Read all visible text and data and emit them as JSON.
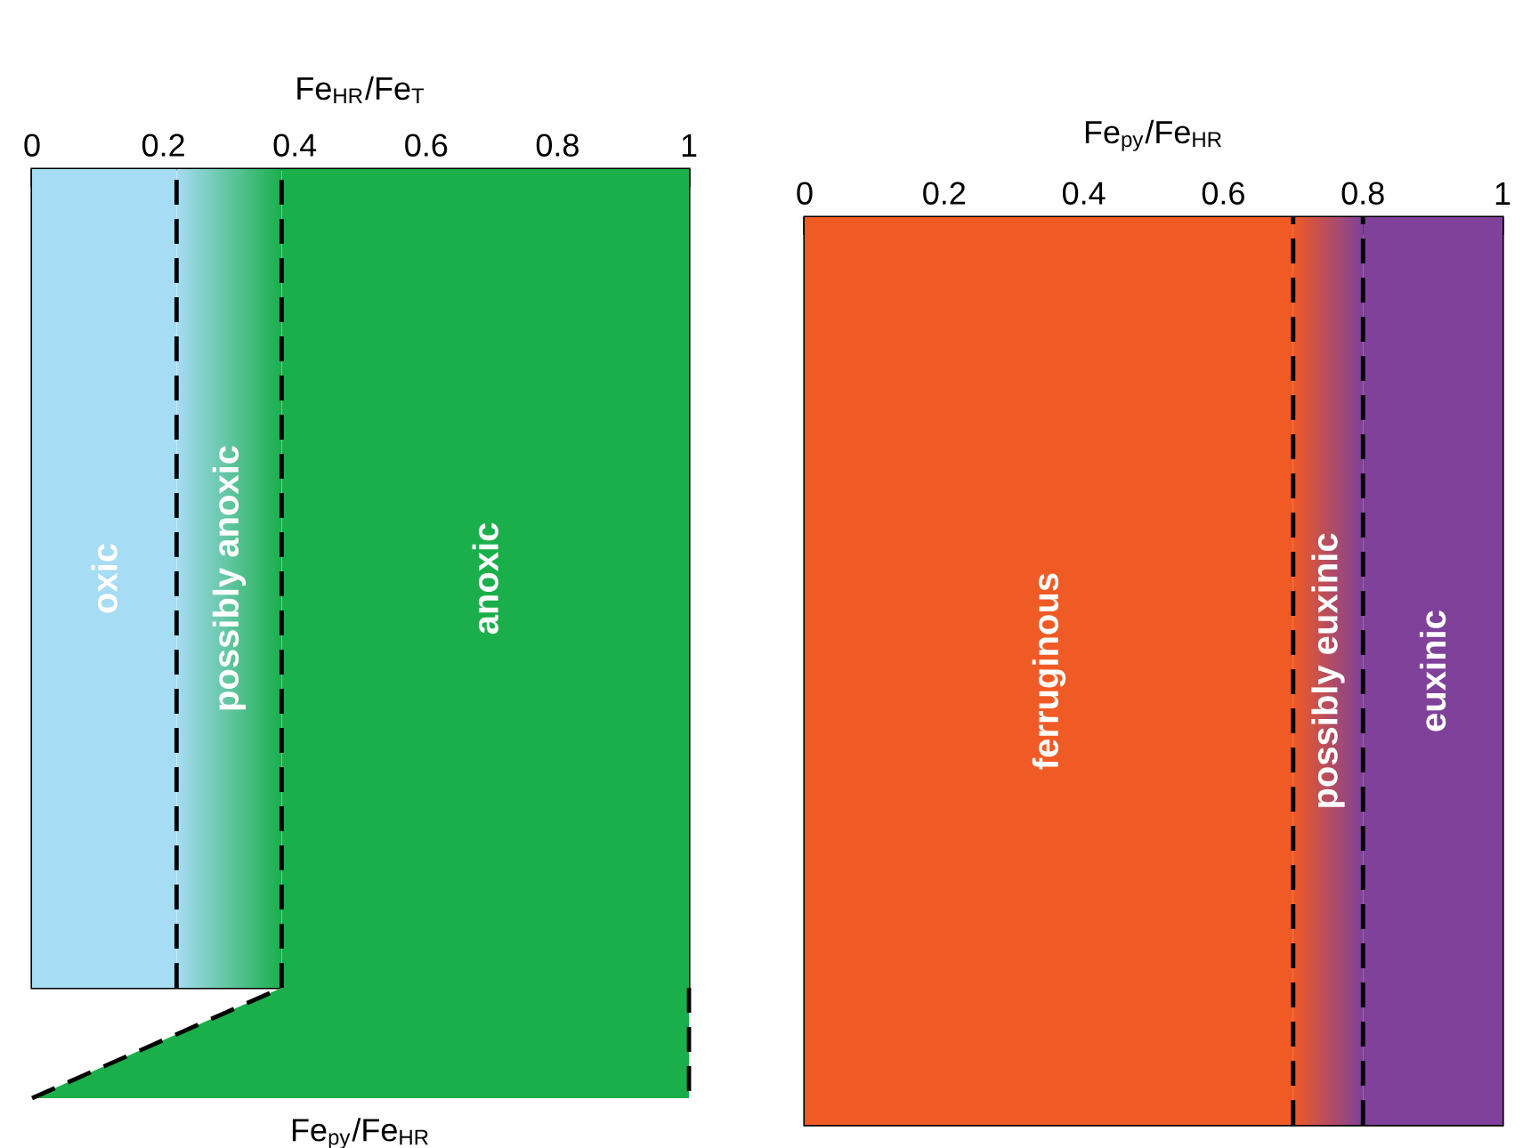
{
  "chart_data": [
    {
      "type": "bar",
      "orientation": "horizontal",
      "stacked": true,
      "categories": [
        null
      ],
      "xlabel": "Fe$_{HR}$/Fe$_{T}$",
      "xlim": [
        0,
        1
      ],
      "xticks": [
        0,
        0.2,
        0.4,
        0.6,
        0.8,
        1
      ],
      "series": [
        {
          "name": "oxic",
          "color": "#a6dcf4",
          "values": [
            0.22
          ]
        },
        {
          "name": "possibly anoxic",
          "values": [
            0.16
          ]
        },
        {
          "name": "anoxic",
          "color": "#1aaf4b",
          "values": [
            0.62
          ]
        }
      ],
      "ref_lines": [
        {
          "axis": "x",
          "value": 0.22,
          "color": "#000000",
          "line_style": "dashed"
        },
        {
          "axis": "x",
          "value": 0.38,
          "color": "#000000",
          "line_style": "dashed"
        }
      ],
      "annotations": [
        "Fe$_{py}$/Fe$_{HR}$"
      ]
    },
    {
      "type": "bar",
      "orientation": "horizontal",
      "stacked": true,
      "categories": [
        null
      ],
      "xlabel": "Fe$_{py}$/Fe$_{HR}$",
      "xlim": [
        0,
        1
      ],
      "xticks": [
        0,
        0.2,
        0.4,
        0.6,
        0.8,
        1
      ],
      "series": [
        {
          "name": "ferruginous",
          "color": "#f05a24",
          "values": [
            0.7
          ]
        },
        {
          "name": "possibly euxinic",
          "values": [
            0.1
          ]
        },
        {
          "name": "euxinic",
          "color": "#7f4199",
          "values": [
            0.2
          ]
        }
      ],
      "ref_lines": [
        {
          "axis": "x",
          "value": 0.7,
          "color": "#000000",
          "line_style": "dashed"
        },
        {
          "axis": "x",
          "value": 0.8,
          "color": "#000000",
          "line_style": "dashed"
        }
      ]
    }
  ]
}
